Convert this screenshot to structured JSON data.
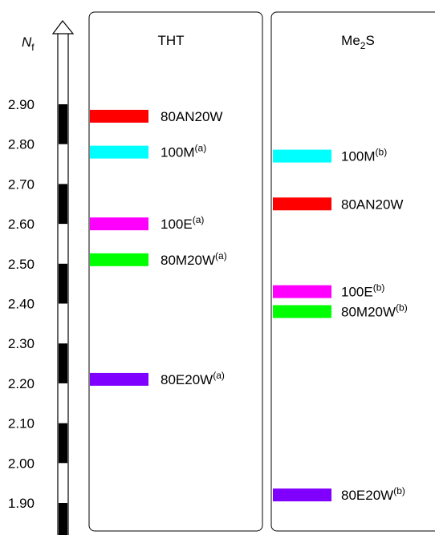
{
  "chart_data": {
    "type": "bar",
    "axis": {
      "label_main": "N",
      "label_sub": "f",
      "ticks": [
        "2.90",
        "2.80",
        "2.70",
        "2.60",
        "2.50",
        "2.40",
        "2.30",
        "2.20",
        "2.10",
        "2.00",
        "1.90"
      ],
      "tick_values": [
        2.9,
        2.8,
        2.7,
        2.6,
        2.5,
        2.4,
        2.3,
        2.2,
        2.1,
        2.0,
        1.9
      ]
    },
    "panels": [
      {
        "title_main": "THT",
        "title_sub": "",
        "title_tail": "",
        "levels": [
          {
            "name": "80AN20W",
            "sup": "",
            "value": 2.87,
            "color": "#ff0000"
          },
          {
            "name": "100M",
            "sup": "(a)",
            "value": 2.78,
            "color": "#00ffff"
          },
          {
            "name": "100E",
            "sup": "(a)",
            "value": 2.6,
            "color": "#ff00ff"
          },
          {
            "name": "80M20W",
            "sup": "(a)",
            "value": 2.51,
            "color": "#00ff00"
          },
          {
            "name": "80E20W",
            "sup": "(a)",
            "value": 2.21,
            "color": "#8000ff"
          }
        ]
      },
      {
        "title_main": "Me",
        "title_sub": "2",
        "title_tail": "S",
        "levels": [
          {
            "name": "100M",
            "sup": "(b)",
            "value": 2.77,
            "color": "#00ffff"
          },
          {
            "name": "80AN20W",
            "sup": "",
            "value": 2.65,
            "color": "#ff0000"
          },
          {
            "name": "100E",
            "sup": "(b)",
            "value": 2.43,
            "color": "#ff00ff"
          },
          {
            "name": "80M20W",
            "sup": "(b)",
            "value": 2.38,
            "color": "#00ff00"
          },
          {
            "name": "80E20W",
            "sup": "(b)",
            "value": 1.92,
            "color": "#8000ff"
          }
        ]
      }
    ]
  }
}
